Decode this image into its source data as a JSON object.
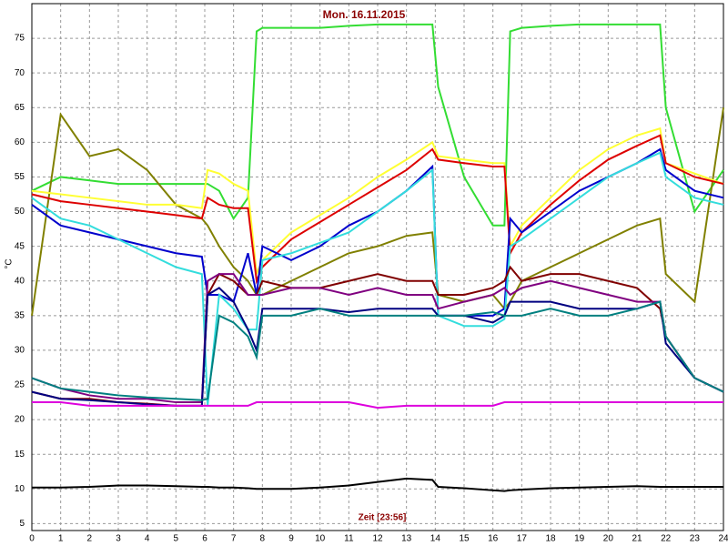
{
  "chart_data": {
    "type": "line",
    "title": "Mon. 16.11.2015",
    "x_label": "Zeit [23:56]",
    "y_label": "°C",
    "x": [
      0,
      1,
      2,
      3,
      4,
      5,
      5.9,
      6.1,
      6.5,
      7,
      7.5,
      7.8,
      8,
      9,
      10,
      11,
      12,
      13,
      13.9,
      14.1,
      15,
      16,
      16.4,
      16.6,
      17,
      18,
      19,
      20,
      21,
      21.8,
      22,
      23,
      24
    ],
    "xlim": [
      0,
      24
    ],
    "xticks": [
      0,
      1,
      2,
      3,
      4,
      5,
      6,
      7,
      8,
      9,
      10,
      11,
      12,
      13,
      14,
      15,
      16,
      17,
      18,
      19,
      20,
      21,
      22,
      23,
      24
    ],
    "ylim": [
      4,
      80
    ],
    "yticks": [
      5,
      10,
      15,
      20,
      25,
      30,
      35,
      40,
      45,
      50,
      55,
      60,
      65,
      70,
      75
    ],
    "grid": true,
    "series": [
      {
        "color": "#33dd33",
        "values": [
          53,
          55,
          54.5,
          54,
          54,
          54,
          54,
          54,
          53,
          49,
          52,
          76,
          76.5,
          76.5,
          76.5,
          76.8,
          77,
          77,
          77,
          68,
          55,
          48,
          48,
          76,
          76.5,
          76.8,
          77,
          77,
          77,
          77,
          65,
          50,
          56
        ]
      },
      {
        "color": "#808000",
        "values": [
          35,
          64,
          58,
          59,
          56,
          51,
          49,
          48,
          45,
          42,
          40,
          38,
          38,
          40,
          42,
          44,
          45,
          46.5,
          47,
          38,
          37,
          38,
          36,
          37,
          40,
          42,
          44,
          46,
          48,
          49,
          41,
          37,
          65
        ]
      },
      {
        "color": "#ffff33",
        "values": [
          53,
          52.5,
          52,
          51.5,
          51,
          51,
          50.5,
          56,
          55.5,
          54,
          53,
          41,
          43,
          47,
          49.5,
          52,
          55,
          57.5,
          60,
          58,
          57.5,
          57,
          57,
          45,
          48,
          52,
          56,
          59,
          61,
          62,
          57,
          55.5,
          54
        ]
      },
      {
        "color": "#dd0000",
        "values": [
          52.5,
          51.5,
          51,
          50.5,
          50,
          49.5,
          49,
          52,
          51,
          50.5,
          50.5,
          40,
          42,
          46,
          48.5,
          51,
          53.5,
          56,
          59,
          57.5,
          57,
          56.5,
          56.5,
          44,
          47,
          51,
          54.5,
          57.5,
          59.5,
          61,
          57,
          55,
          54
        ]
      },
      {
        "color": "#0000cc",
        "values": [
          51,
          48,
          47,
          46,
          45,
          44,
          43.5,
          38,
          38,
          37,
          44,
          38,
          45,
          43,
          45,
          48,
          50,
          53,
          56.5,
          35,
          35,
          35,
          36,
          49,
          47,
          50,
          53,
          55,
          57,
          59,
          56,
          53,
          52
        ]
      },
      {
        "color": "#33dddd",
        "values": [
          52,
          49,
          48,
          46,
          44,
          42,
          41,
          22,
          38,
          36,
          33,
          33,
          43,
          44,
          45.5,
          47,
          50,
          53,
          56,
          35,
          33.5,
          33.5,
          34.5,
          45,
          46,
          49,
          52,
          55,
          57,
          58.5,
          55,
          52,
          51
        ]
      },
      {
        "color": "#800000",
        "values": [
          24,
          23,
          23,
          22.5,
          22.3,
          22,
          22,
          38,
          41,
          40,
          38,
          38,
          40,
          39,
          39,
          40,
          41,
          40,
          40,
          38,
          38,
          39,
          40,
          42,
          40,
          41,
          41,
          40,
          39,
          36,
          32,
          26,
          24
        ]
      },
      {
        "color": "#800080",
        "values": [
          26,
          24.5,
          23.5,
          23,
          23,
          22.5,
          22.5,
          40,
          41,
          41,
          38,
          38,
          38,
          39,
          39,
          38,
          39,
          38,
          38,
          36,
          37,
          38,
          39,
          38,
          39,
          40,
          39,
          38,
          37,
          37,
          32,
          26,
          24
        ]
      },
      {
        "color": "#000080",
        "values": [
          24,
          23,
          22.8,
          22.5,
          22.2,
          22,
          22,
          38,
          39,
          37,
          33,
          30,
          36,
          36,
          36,
          35.5,
          36,
          36,
          36,
          35,
          35,
          34,
          35,
          37,
          37,
          37,
          36,
          36,
          36,
          37,
          31,
          26,
          24
        ]
      },
      {
        "color": "#008080",
        "values": [
          26,
          24.5,
          24,
          23.5,
          23.2,
          23,
          22.8,
          23,
          35,
          34,
          32,
          29,
          35,
          35,
          36,
          35,
          35,
          35,
          35,
          35,
          35,
          35.5,
          35,
          35,
          35,
          36,
          35,
          35,
          36,
          37,
          32,
          26,
          24
        ]
      },
      {
        "color": "#dd00dd",
        "values": [
          22.5,
          22.5,
          22,
          22,
          22,
          22,
          22,
          22,
          22,
          22,
          22,
          22.5,
          22.5,
          22.5,
          22.5,
          22.5,
          21.7,
          22,
          22,
          22,
          22,
          22,
          22.5,
          22.5,
          22.5,
          22.5,
          22.5,
          22.5,
          22.5,
          22.5,
          22.5,
          22.5,
          22.5
        ]
      },
      {
        "color": "#000000",
        "values": [
          10.2,
          10.2,
          10.3,
          10.5,
          10.5,
          10.4,
          10.3,
          10.3,
          10.2,
          10.2,
          10.1,
          10,
          10,
          10,
          10.2,
          10.5,
          11,
          11.5,
          11.3,
          10.3,
          10.1,
          9.8,
          9.7,
          9.8,
          9.9,
          10.1,
          10.2,
          10.3,
          10.4,
          10.3,
          10.3,
          10.3,
          10.3
        ]
      }
    ]
  }
}
